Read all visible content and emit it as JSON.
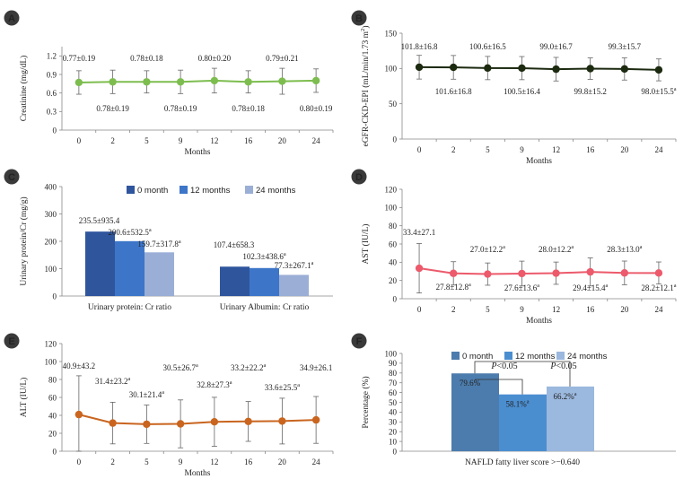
{
  "chart_data": [
    {
      "panel": "A",
      "type": "line",
      "x": [
        0,
        2,
        5,
        9,
        12,
        16,
        20,
        24
      ],
      "values": [
        0.77,
        0.78,
        0.78,
        0.78,
        0.8,
        0.78,
        0.79,
        0.8
      ],
      "sd": [
        0.19,
        0.19,
        0.18,
        0.19,
        0.2,
        0.18,
        0.21,
        0.19
      ],
      "labels": [
        "0.77±0.19",
        "0.78±0.19",
        "0.78±0.18",
        "0.78±0.19",
        "0.80±0.20",
        "0.78±0.18",
        "0.79±0.21",
        "0.80±0.19"
      ],
      "xlabel": "Months",
      "ylabel": "Creatinine (mg/dL)",
      "yticks": [
        "0",
        "0.3",
        "0.6",
        "0.9",
        "1.2"
      ],
      "ylim": [
        0,
        1.35
      ],
      "color": "#7dbd4f"
    },
    {
      "panel": "B",
      "type": "line",
      "x": [
        0,
        2,
        5,
        9,
        12,
        16,
        20,
        24
      ],
      "values": [
        101.8,
        101.6,
        100.6,
        100.5,
        99.0,
        99.8,
        99.3,
        98.0
      ],
      "sd": [
        16.8,
        16.8,
        16.5,
        16.4,
        16.7,
        15.2,
        15.7,
        15.5
      ],
      "labels": [
        "101.8±16.8",
        "101.6±16.8",
        "100.6±16.5",
        "100.5±16.4",
        "99.0±16.7",
        "99.8±15.2",
        "99.3±15.7",
        "98.0±15.5a"
      ],
      "xlabel": "Months",
      "ylabel": "eGFR-CKD-EPI (mL/min/1.73 m²)",
      "yticks": [
        "0",
        "50",
        "100",
        "150"
      ],
      "ylim": [
        0,
        150
      ],
      "color": "#1c2a10"
    },
    {
      "panel": "C",
      "type": "bar",
      "categories": [
        "Urinary protein: Cr ratio",
        "Urinary Albumin: Cr ratio"
      ],
      "series": [
        {
          "name": "0 month",
          "values": [
            235.5,
            107.4
          ],
          "labels": [
            "235.5±935.4",
            "107.4±658.3"
          ],
          "color": "#2f559d"
        },
        {
          "name": "12 months",
          "values": [
            200.6,
            102.3
          ],
          "labels": [
            "200.6±532.5a",
            "102.3±438.6a"
          ],
          "color": "#3d76c8"
        },
        {
          "name": "24 months",
          "values": [
            159.7,
            77.3
          ],
          "labels": [
            "159.7±317.8a",
            "77.3±267.1a"
          ],
          "color": "#9aaed6"
        }
      ],
      "ylabel": "Urinary protein/Cr (mg/g)",
      "yticks": [
        "0",
        "100",
        "200",
        "300",
        "400"
      ],
      "ylim": [
        0,
        400
      ]
    },
    {
      "panel": "D",
      "type": "line",
      "x": [
        0,
        2,
        5,
        9,
        12,
        16,
        20,
        24
      ],
      "values": [
        33.4,
        27.8,
        27.0,
        27.6,
        28.0,
        29.4,
        28.3,
        28.2
      ],
      "sd": [
        27.1,
        12.8,
        12.2,
        13.6,
        12.2,
        15.4,
        13.0,
        12.1
      ],
      "labels": [
        "33.4±27.1",
        "27.8±12.8a",
        "27.0±12.2a",
        "27.6±13.6a",
        "28.0±12.2a",
        "29.4±15.4a",
        "28.3±13.0a",
        "28.2±12.1a"
      ],
      "xlabel": "Months",
      "ylabel": "AST (IU/L)",
      "yticks": [
        "0",
        "20",
        "40",
        "60",
        "80",
        "100",
        "120"
      ],
      "ylim": [
        0,
        120
      ],
      "color": "#ec5a6b"
    },
    {
      "panel": "E",
      "type": "line",
      "x": [
        0,
        2,
        5,
        9,
        12,
        16,
        20,
        24
      ],
      "values": [
        40.9,
        31.4,
        30.1,
        30.5,
        32.8,
        33.2,
        33.6,
        34.9
      ],
      "sd": [
        43.2,
        23.2,
        21.4,
        26.7,
        27.3,
        22.2,
        25.5,
        26.1
      ],
      "labels": [
        "40.9±43.2",
        "31.4±23.2a",
        "30.1±21.4a",
        "30.5±26.7a",
        "32.8±27.3a",
        "33.2±22.2a",
        "33.6±25.5a",
        "34.9±26.1"
      ],
      "xlabel": "Months",
      "ylabel": "ALT (IU/L)",
      "yticks": [
        "0",
        "20",
        "40",
        "60",
        "80",
        "100",
        "120"
      ],
      "ylim": [
        0,
        120
      ],
      "color": "#c9651f"
    },
    {
      "panel": "F",
      "type": "bar",
      "categories": [
        "NAFLD fatty liver score >−0.640"
      ],
      "series": [
        {
          "name": "0 month",
          "values": [
            79.6
          ],
          "labels": [
            "79.6%"
          ],
          "color": "#4c7cad"
        },
        {
          "name": "12 months",
          "values": [
            58.1
          ],
          "labels": [
            "58.1%a"
          ],
          "color": "#4b8ed0"
        },
        {
          "name": "24 months",
          "values": [
            66.2
          ],
          "labels": [
            "66.2%a"
          ],
          "color": "#9bb8de"
        }
      ],
      "annotations": [
        "P<0.05",
        "P<0.05"
      ],
      "ylabel": "Percentage (%)",
      "yticks": [
        "0",
        "10",
        "20",
        "30",
        "40",
        "50",
        "60",
        "70",
        "80",
        "90",
        "100"
      ],
      "ylim": [
        0,
        100
      ]
    }
  ]
}
